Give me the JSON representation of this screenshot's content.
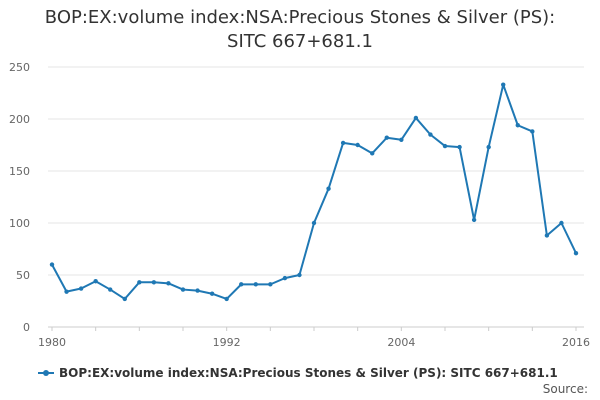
{
  "chart_data": {
    "type": "line",
    "title_lines": [
      "BOP:EX:volume index:NSA:Precious Stones & Silver (PS):",
      "SITC 667+681.1"
    ],
    "x": [
      1980,
      1981,
      1982,
      1983,
      1984,
      1985,
      1986,
      1987,
      1988,
      1989,
      1990,
      1991,
      1992,
      1993,
      1994,
      1995,
      1996,
      1997,
      1998,
      1999,
      2000,
      2001,
      2002,
      2003,
      2004,
      2005,
      2006,
      2007,
      2008,
      2009,
      2010,
      2011,
      2012,
      2013,
      2014,
      2015,
      2016
    ],
    "series": [
      {
        "name": "BOP:EX:volume index:NSA:Precious Stones & Silver (PS): SITC 667+681.1",
        "color": "#1f78b4",
        "values": [
          60,
          34,
          37,
          44,
          36,
          27,
          43,
          43,
          42,
          36,
          35,
          32,
          27,
          41,
          41,
          41,
          47,
          50,
          100,
          133,
          177,
          175,
          167,
          182,
          180,
          201,
          185,
          174,
          173,
          103,
          173,
          233,
          194,
          188,
          88,
          100,
          71
        ]
      }
    ],
    "xticks": [
      "1980",
      "1992",
      "2004",
      "2016"
    ],
    "yticks": [
      "0",
      "50",
      "100",
      "150",
      "200",
      "250"
    ],
    "xlim": [
      1980,
      2016
    ],
    "ylim": [
      0,
      250
    ],
    "grid": true,
    "legend_position": "bottom"
  },
  "legend_label": "BOP:EX:volume index:NSA:Precious Stones & Silver (PS): SITC 667+681.1",
  "source_label": "Source:"
}
